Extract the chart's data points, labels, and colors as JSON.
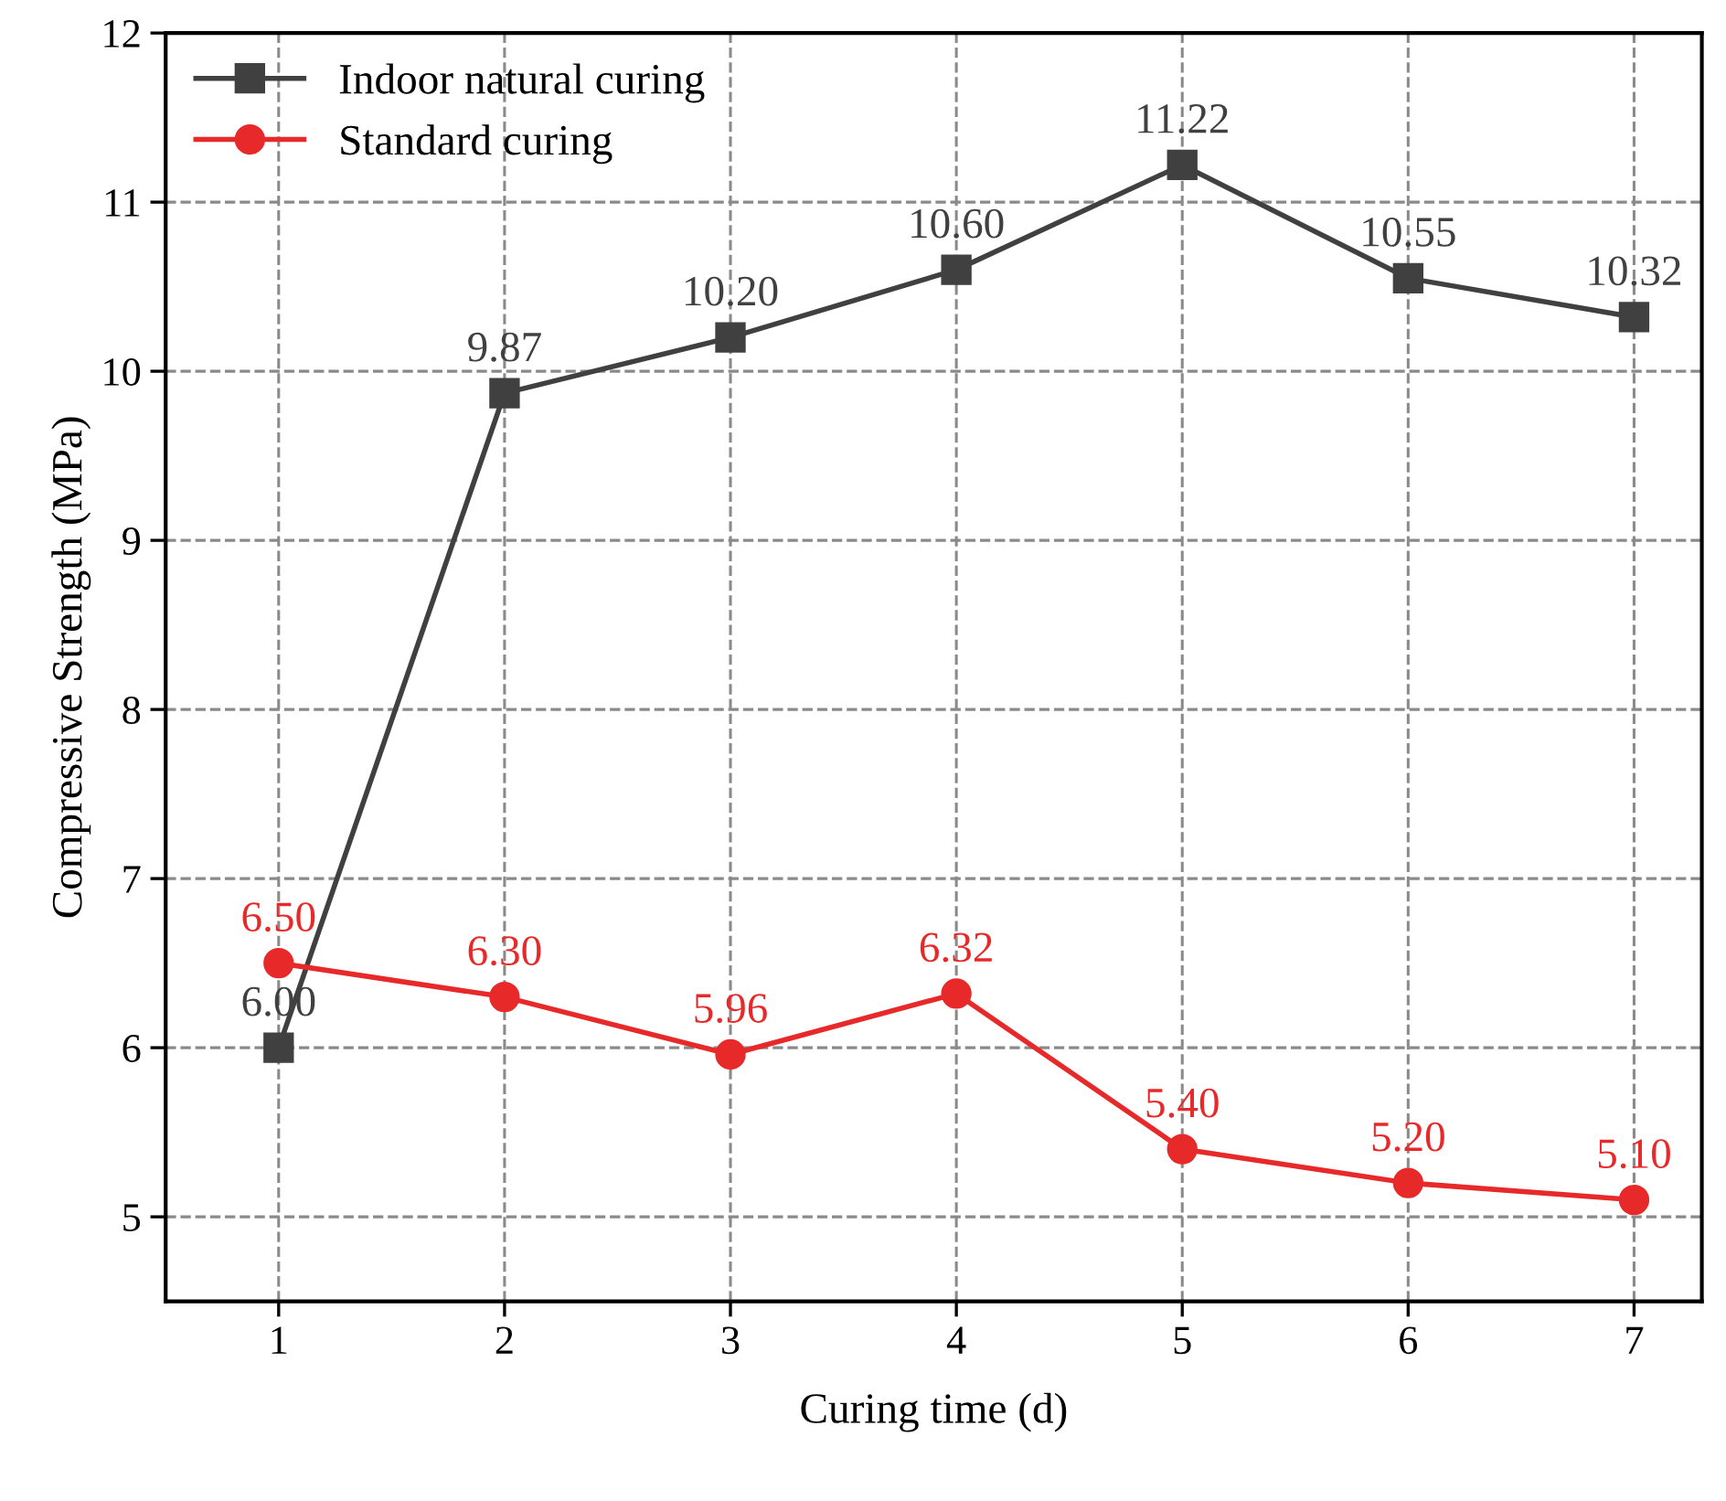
{
  "chart_data": {
    "type": "line",
    "xlabel": "Curing time (d)",
    "ylabel": "Compressive Strength (MPa)",
    "x": [
      1,
      2,
      3,
      4,
      5,
      6,
      7
    ],
    "xlim": [
      0.5,
      7.3
    ],
    "xticks": [
      1,
      2,
      3,
      4,
      5,
      6,
      7
    ],
    "ylim": [
      4.5,
      12
    ],
    "yticks": [
      5,
      6,
      7,
      8,
      9,
      10,
      11,
      12
    ],
    "grid": true,
    "legend": "top left",
    "line_style": "solid",
    "series": [
      {
        "name": "Indoor natural curing",
        "color": "#404040",
        "marker": "square",
        "values": [
          6.0,
          9.87,
          10.2,
          10.6,
          11.22,
          10.55,
          10.32
        ],
        "value_labels": [
          "6.00",
          "9.87",
          "10.20",
          "10.60",
          "11.22",
          "10.55",
          "10.32"
        ]
      },
      {
        "name": "Standard curing",
        "color": "#e8292a",
        "marker": "circle",
        "values": [
          6.5,
          6.3,
          5.96,
          6.32,
          5.4,
          5.2,
          5.1
        ],
        "value_labels": [
          "6.50",
          "6.30",
          "5.96",
          "6.32",
          "5.40",
          "5.20",
          "5.10"
        ]
      }
    ]
  }
}
